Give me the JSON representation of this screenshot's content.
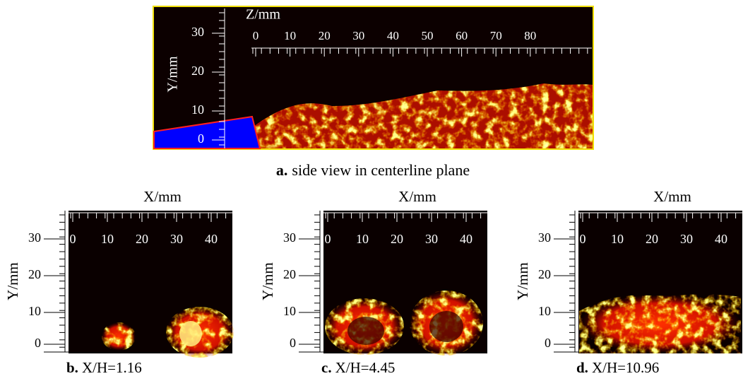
{
  "panels": [
    {
      "label": "a.",
      "caption": "side view in centerline plane",
      "x_label": "Z/mm",
      "y_label": "Y/mm",
      "x_ticks": [
        0,
        10,
        20,
        30,
        40,
        50,
        60,
        70,
        80
      ],
      "y_ticks": [
        30,
        20,
        10,
        0
      ]
    },
    {
      "label": "b.",
      "caption": "X/H=1.16",
      "x_label": "X/mm",
      "y_label": "Y/mm",
      "x_ticks": [
        0,
        10,
        20,
        30,
        40
      ],
      "y_ticks": [
        30,
        20,
        10,
        0
      ]
    },
    {
      "label": "c.",
      "caption": "X/H=4.45",
      "x_label": "X/mm",
      "y_label": "Y/mm",
      "x_ticks": [
        0,
        10,
        20,
        30,
        40
      ],
      "y_ticks": [
        30,
        20,
        10,
        0
      ]
    },
    {
      "label": "d.",
      "caption": "X/H=10.96",
      "x_label": "X/mm",
      "y_label": "Y/mm",
      "x_ticks": [
        0,
        10,
        20,
        30,
        40
      ],
      "y_ticks": [
        30,
        20,
        10,
        0
      ]
    }
  ]
}
